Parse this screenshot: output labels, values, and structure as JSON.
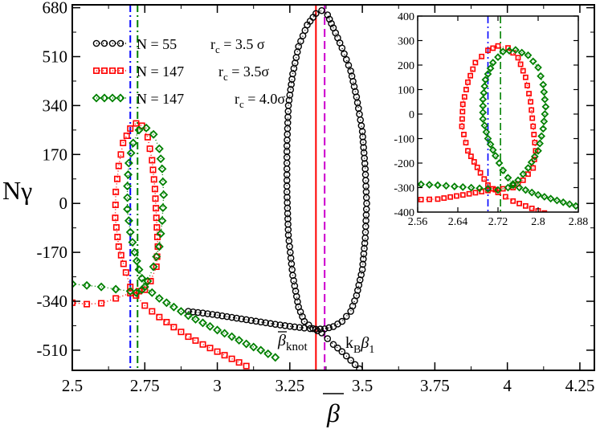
{
  "chart_data": {
    "type": "scatter",
    "xlabel": "β",
    "ylabel": "Nγ",
    "xlim": [
      2.5,
      4.3
    ],
    "ylim": [
      -580,
      690
    ],
    "xticks": [
      "2.5",
      "2.75",
      "3",
      "3.25",
      "3.5",
      "3.75",
      "4",
      "4.25"
    ],
    "yticks": [
      "680",
      "510",
      "340",
      "170",
      "0",
      "-170",
      "-340",
      "-510"
    ],
    "grid": false,
    "legend_position": "top-left",
    "legend": [
      {
        "n_label": "N = 55",
        "rc_label": "r",
        "rc_sub": "c",
        "rc_value": " = 3.5 σ",
        "color": "#000000",
        "marker": "circle"
      },
      {
        "n_label": "N = 147",
        "rc_label": "r",
        "rc_sub": "c",
        "rc_value": " = 3.5σ",
        "color": "#ff0000",
        "marker": "square"
      },
      {
        "n_label": "N =  147",
        "rc_label": "r",
        "rc_sub": "c",
        "rc_value": " = 4.0σ",
        "color": "#008000",
        "marker": "diamond"
      }
    ],
    "series": [
      {
        "name": "N = 55, rc = 3.5σ",
        "color": "#000000",
        "marker": "circle",
        "upper_branch": [
          [
            2.9,
            -375
          ],
          [
            2.95,
            -381
          ],
          [
            3.0,
            -388
          ],
          [
            3.05,
            -396
          ],
          [
            3.1,
            -404
          ],
          [
            3.15,
            -412
          ],
          [
            3.2,
            -420
          ],
          [
            3.25,
            -427
          ],
          [
            3.3,
            -433
          ],
          [
            3.34,
            -437
          ],
          [
            3.37,
            -436
          ],
          [
            3.4,
            -428
          ],
          [
            3.43,
            -410
          ],
          [
            3.46,
            -375
          ],
          [
            3.48,
            -320
          ],
          [
            3.5,
            -230
          ],
          [
            3.51,
            -120
          ],
          [
            3.515,
            0
          ],
          [
            3.51,
            120
          ],
          [
            3.5,
            250
          ],
          [
            3.48,
            370
          ],
          [
            3.46,
            460
          ],
          [
            3.43,
            540
          ],
          [
            3.4,
            610
          ],
          [
            3.38,
            655
          ],
          [
            3.36,
            670
          ],
          [
            3.34,
            660
          ],
          [
            3.31,
            620
          ],
          [
            3.28,
            545
          ],
          [
            3.26,
            450
          ],
          [
            3.245,
            340
          ],
          [
            3.24,
            200
          ],
          [
            3.24,
            40
          ],
          [
            3.245,
            -110
          ],
          [
            3.26,
            -250
          ],
          [
            3.28,
            -360
          ],
          [
            3.3,
            -410
          ],
          [
            3.33,
            -435
          ],
          [
            3.36,
            -450
          ],
          [
            3.38,
            -470
          ],
          [
            3.4,
            -490
          ],
          [
            3.43,
            -515
          ],
          [
            3.46,
            -545
          ],
          [
            3.49,
            -575
          ]
        ]
      },
      {
        "name": "N = 147, rc = 3.5σ",
        "color": "#ff0000",
        "marker": "square",
        "points": [
          [
            2.5,
            -345
          ],
          [
            2.55,
            -350
          ],
          [
            2.6,
            -347
          ],
          [
            2.65,
            -330
          ],
          [
            2.7,
            -312
          ],
          [
            2.73,
            -305
          ],
          [
            2.75,
            -300
          ],
          [
            2.77,
            -270
          ],
          [
            2.79,
            -220
          ],
          [
            2.795,
            -150
          ],
          [
            2.79,
            -50
          ],
          [
            2.785,
            50
          ],
          [
            2.775,
            150
          ],
          [
            2.76,
            230
          ],
          [
            2.74,
            270
          ],
          [
            2.72,
            278
          ],
          [
            2.7,
            260
          ],
          [
            2.675,
            210
          ],
          [
            2.66,
            130
          ],
          [
            2.65,
            40
          ],
          [
            2.648,
            -50
          ],
          [
            2.66,
            -150
          ],
          [
            2.685,
            -240
          ],
          [
            2.7,
            -290
          ],
          [
            2.72,
            -320
          ],
          [
            2.75,
            -355
          ],
          [
            2.8,
            -395
          ],
          [
            2.85,
            -430
          ],
          [
            2.9,
            -463
          ],
          [
            2.95,
            -490
          ],
          [
            3.0,
            -515
          ],
          [
            3.05,
            -540
          ],
          [
            3.1,
            -565
          ]
        ]
      },
      {
        "name": "N = 147, rc = 4.0σ",
        "color": "#008000",
        "marker": "diamond",
        "points": [
          [
            2.5,
            -280
          ],
          [
            2.55,
            -285
          ],
          [
            2.6,
            -290
          ],
          [
            2.65,
            -298
          ],
          [
            2.7,
            -305
          ],
          [
            2.72,
            -310
          ],
          [
            2.74,
            -300
          ],
          [
            2.76,
            -270
          ],
          [
            2.78,
            -220
          ],
          [
            2.8,
            -150
          ],
          [
            2.81,
            -60
          ],
          [
            2.815,
            30
          ],
          [
            2.81,
            120
          ],
          [
            2.8,
            190
          ],
          [
            2.78,
            240
          ],
          [
            2.755,
            262
          ],
          [
            2.73,
            255
          ],
          [
            2.71,
            210
          ],
          [
            2.695,
            140
          ],
          [
            2.69,
            60
          ],
          [
            2.69,
            -20
          ],
          [
            2.7,
            -100
          ],
          [
            2.715,
            -170
          ],
          [
            2.73,
            -230
          ],
          [
            2.75,
            -290
          ],
          [
            2.8,
            -330
          ],
          [
            2.85,
            -360
          ],
          [
            2.9,
            -390
          ],
          [
            2.95,
            -415
          ],
          [
            3.0,
            -440
          ],
          [
            3.05,
            -463
          ],
          [
            3.1,
            -488
          ],
          [
            3.15,
            -510
          ],
          [
            3.2,
            -535
          ]
        ]
      }
    ],
    "vlines": [
      {
        "x": 3.34,
        "color": "#ff0000",
        "style": "solid"
      },
      {
        "x": 3.37,
        "color": "#cc00cc",
        "style": "dashed"
      },
      {
        "x": 2.7,
        "color": "#0000ff",
        "style": "dashdot"
      },
      {
        "x": 2.725,
        "color": "#008000",
        "style": "dashdot"
      }
    ],
    "annotations": [
      {
        "id": "beta_knot",
        "text": "β",
        "sub": "knot",
        "x": 3.05,
        "y": -470
      },
      {
        "id": "kb_beta1",
        "text": "k",
        "sub1": "B",
        "mid": "β",
        "sub2": "1",
        "x": 3.42,
        "y": -470
      }
    ],
    "inset": {
      "xlim": [
        2.56,
        2.88
      ],
      "ylim": [
        -400,
        400
      ],
      "xticks": [
        "2.56",
        "2.64",
        "2.72",
        "2.8",
        "2.88"
      ],
      "yticks": [
        "400",
        "300",
        "200",
        "100",
        "0",
        "-100",
        "-200",
        "-300",
        "-400"
      ],
      "vlines": [
        {
          "x": 2.7,
          "color": "#0000ff",
          "style": "dashdot"
        },
        {
          "x": 2.725,
          "color": "#008000",
          "style": "dashdot"
        }
      ]
    }
  }
}
